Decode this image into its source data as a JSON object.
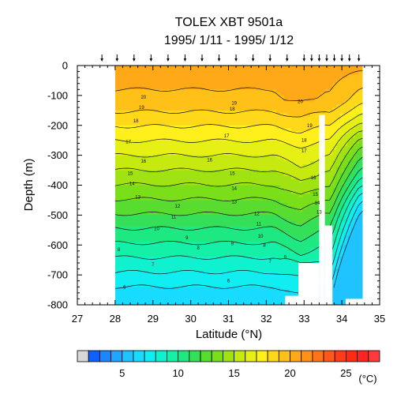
{
  "chart_data": {
    "type": "heatmap",
    "title": "TOLEX XBT 9501a",
    "subtitle": "1995/ 1/11 - 1995/ 1/12",
    "xlabel": "Latitude (°N)",
    "ylabel": "Depth (m)",
    "xlim": [
      27,
      35
    ],
    "ylim": [
      -800,
      0
    ],
    "x_ticks": [
      27,
      28,
      29,
      30,
      31,
      32,
      33,
      34,
      35
    ],
    "x_tick_labels": [
      "27",
      "28",
      "29",
      "30",
      "31",
      "32",
      "33",
      "34",
      "35"
    ],
    "y_ticks": [
      0,
      -100,
      -200,
      -300,
      -400,
      -500,
      -600,
      -700,
      -800
    ],
    "y_tick_labels": [
      "0",
      "-100",
      "-200",
      "-300",
      "-400",
      "-500",
      "-600",
      "-700",
      "-800"
    ],
    "station_latitudes": [
      27.65,
      28.05,
      28.5,
      28.95,
      29.4,
      29.85,
      30.3,
      30.75,
      31.2,
      31.65,
      32.1,
      32.55,
      33.0,
      33.2,
      33.4,
      33.6,
      33.8,
      34.0,
      34.2,
      34.45
    ],
    "contour_levels": [
      6,
      7,
      8,
      9,
      10,
      11,
      12,
      13,
      14,
      15,
      16,
      17,
      18,
      19,
      20
    ],
    "contour_labels": [
      {
        "text": "20",
        "lat": 28.75,
        "depth": -105
      },
      {
        "text": "19",
        "lat": 28.7,
        "depth": -140
      },
      {
        "text": "18",
        "lat": 28.55,
        "depth": -185
      },
      {
        "text": "17",
        "lat": 28.35,
        "depth": -255
      },
      {
        "text": "16",
        "lat": 28.75,
        "depth": -320
      },
      {
        "text": "15",
        "lat": 28.4,
        "depth": -360
      },
      {
        "text": "14",
        "lat": 28.45,
        "depth": -395
      },
      {
        "text": "13",
        "lat": 28.6,
        "depth": -440
      },
      {
        "text": "12",
        "lat": 29.65,
        "depth": -470
      },
      {
        "text": "11",
        "lat": 29.55,
        "depth": -505
      },
      {
        "text": "10",
        "lat": 29.1,
        "depth": -545
      },
      {
        "text": "9",
        "lat": 29.9,
        "depth": -575
      },
      {
        "text": "8",
        "lat": 28.1,
        "depth": -615
      },
      {
        "text": "8",
        "lat": 30.2,
        "depth": -610
      },
      {
        "text": "7",
        "lat": 29.0,
        "depth": -665
      },
      {
        "text": "6",
        "lat": 28.25,
        "depth": -740
      },
      {
        "text": "6",
        "lat": 31.0,
        "depth": -720
      },
      {
        "text": "19",
        "lat": 31.15,
        "depth": -125
      },
      {
        "text": "18",
        "lat": 31.1,
        "depth": -145
      },
      {
        "text": "17",
        "lat": 30.95,
        "depth": -235
      },
      {
        "text": "16",
        "lat": 30.5,
        "depth": -315
      },
      {
        "text": "15",
        "lat": 31.1,
        "depth": -360
      },
      {
        "text": "14",
        "lat": 31.15,
        "depth": -410
      },
      {
        "text": "13",
        "lat": 31.15,
        "depth": -455
      },
      {
        "text": "12",
        "lat": 31.75,
        "depth": -495
      },
      {
        "text": "11",
        "lat": 31.8,
        "depth": -530
      },
      {
        "text": "10",
        "lat": 31.85,
        "depth": -570
      },
      {
        "text": "9",
        "lat": 31.1,
        "depth": -595
      },
      {
        "text": "8",
        "lat": 31.95,
        "depth": -600
      },
      {
        "text": "7",
        "lat": 32.1,
        "depth": -655
      },
      {
        "text": "20",
        "lat": 32.9,
        "depth": -120
      },
      {
        "text": "19",
        "lat": 33.15,
        "depth": -200
      },
      {
        "text": "18",
        "lat": 33.0,
        "depth": -250
      },
      {
        "text": "17",
        "lat": 33.0,
        "depth": -285
      },
      {
        "text": "16",
        "lat": 33.25,
        "depth": -375
      },
      {
        "text": "15",
        "lat": 33.3,
        "depth": -430
      },
      {
        "text": "14",
        "lat": 33.35,
        "depth": -460
      },
      {
        "text": "13",
        "lat": 33.4,
        "depth": -490
      },
      {
        "text": "9",
        "lat": 32.5,
        "depth": -640
      }
    ],
    "colorbar": {
      "min": 2,
      "max": 28,
      "step": 1,
      "ticks": [
        5,
        10,
        15,
        20,
        25
      ],
      "tick_labels": [
        "5",
        "10",
        "15",
        "20",
        "25"
      ],
      "units": "(°C)"
    },
    "colors": {
      "missing": "#d8d8d8",
      "palette": [
        "#1060ff",
        "#1c86ff",
        "#1fa6ff",
        "#1fc4ff",
        "#18dcff",
        "#10eef2",
        "#10f2cf",
        "#14f0a8",
        "#1ee882",
        "#34e05a",
        "#58dc30",
        "#7ade18",
        "#a0e212",
        "#c6ea10",
        "#e6f014",
        "#fff01c",
        "#ffd81a",
        "#ffc018",
        "#ffa818",
        "#ff9018",
        "#ff7418",
        "#ff5818",
        "#ff3c18",
        "#ff2a14",
        "#ff2424",
        "#ff3a3a"
      ]
    }
  }
}
